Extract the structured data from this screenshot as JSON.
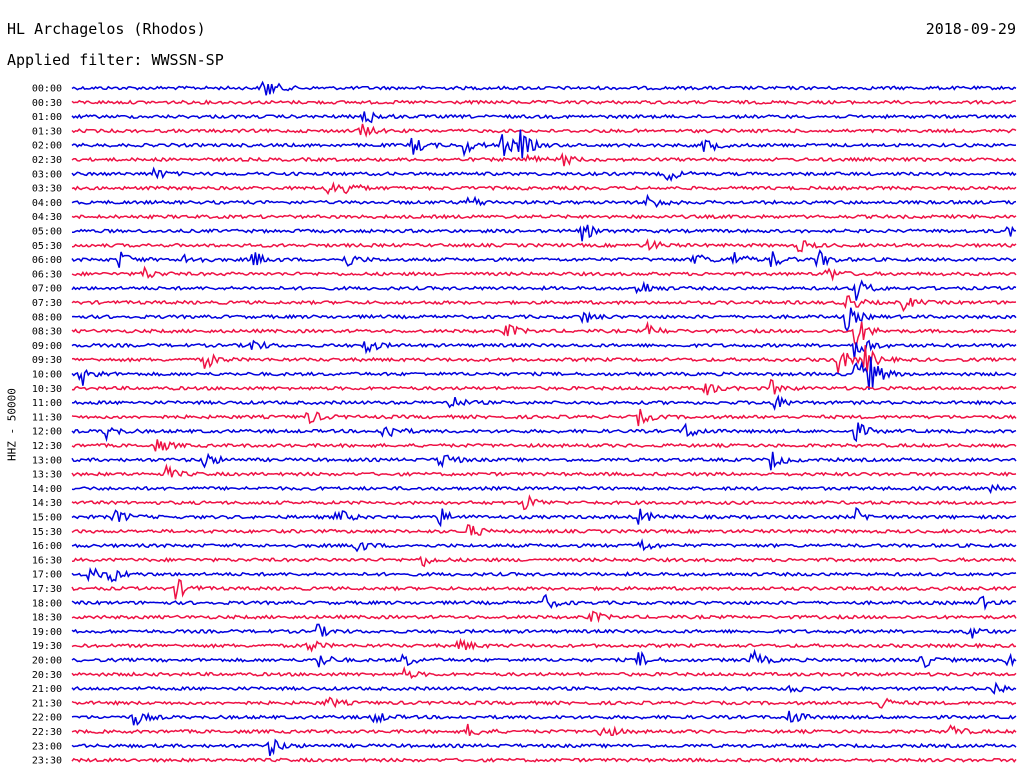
{
  "header": {
    "station": "HL Archagelos (Rhodos)",
    "date": "2018-09-29",
    "filter": "Applied filter: WWSSN-SP"
  },
  "chart_data": {
    "type": "line",
    "subtype": "helicorder",
    "ylabel": "HHZ - 50000",
    "row_times": [
      "00:00",
      "00:30",
      "01:00",
      "01:30",
      "02:00",
      "02:30",
      "03:00",
      "03:30",
      "04:00",
      "04:30",
      "05:00",
      "05:30",
      "06:00",
      "06:30",
      "07:00",
      "07:30",
      "08:00",
      "08:30",
      "09:00",
      "09:30",
      "10:00",
      "10:30",
      "11:00",
      "11:30",
      "12:00",
      "12:30",
      "13:00",
      "13:30",
      "14:00",
      "14:30",
      "15:00",
      "15:30",
      "16:00",
      "16:30",
      "17:00",
      "17:30",
      "18:00",
      "18:30",
      "19:00",
      "19:30",
      "20:00",
      "20:30",
      "21:00",
      "21:30",
      "22:00",
      "22:30",
      "23:00",
      "23:30"
    ],
    "trace_minutes": 30,
    "colors": [
      "#0000dd",
      "#ee1144"
    ],
    "events": [
      {
        "row": 0,
        "t": 0.203,
        "amp": 14
      },
      {
        "row": 2,
        "t": 0.31,
        "amp": 10
      },
      {
        "row": 3,
        "t": 0.305,
        "amp": 8
      },
      {
        "row": 4,
        "t": 0.36,
        "amp": 10
      },
      {
        "row": 4,
        "t": 0.415,
        "amp": 9
      },
      {
        "row": 4,
        "t": 0.455,
        "amp": 13
      },
      {
        "row": 4,
        "t": 0.475,
        "amp": 14
      },
      {
        "row": 4,
        "t": 0.67,
        "amp": 9
      },
      {
        "row": 5,
        "t": 0.48,
        "amp": 6
      },
      {
        "row": 5,
        "t": 0.52,
        "amp": 6
      },
      {
        "row": 6,
        "t": 0.085,
        "amp": 7
      },
      {
        "row": 6,
        "t": 0.63,
        "amp": 8
      },
      {
        "row": 7,
        "t": 0.27,
        "amp": 8
      },
      {
        "row": 7,
        "t": 0.29,
        "amp": 7
      },
      {
        "row": 8,
        "t": 0.42,
        "amp": 8
      },
      {
        "row": 8,
        "t": 0.61,
        "amp": 10
      },
      {
        "row": 10,
        "t": 0.54,
        "amp": 10
      },
      {
        "row": 10,
        "t": 0.99,
        "amp": 7
      },
      {
        "row": 11,
        "t": 0.61,
        "amp": 6
      },
      {
        "row": 11,
        "t": 0.77,
        "amp": 7
      },
      {
        "row": 12,
        "t": 0.05,
        "amp": 9
      },
      {
        "row": 12,
        "t": 0.12,
        "amp": 8
      },
      {
        "row": 12,
        "t": 0.19,
        "amp": 10
      },
      {
        "row": 12,
        "t": 0.29,
        "amp": 8
      },
      {
        "row": 12,
        "t": 0.66,
        "amp": 8
      },
      {
        "row": 12,
        "t": 0.7,
        "amp": 9
      },
      {
        "row": 12,
        "t": 0.74,
        "amp": 9
      },
      {
        "row": 12,
        "t": 0.79,
        "amp": 10
      },
      {
        "row": 13,
        "t": 0.075,
        "amp": 7
      },
      {
        "row": 13,
        "t": 0.8,
        "amp": 8
      },
      {
        "row": 14,
        "t": 0.6,
        "amp": 10
      },
      {
        "row": 14,
        "t": 0.83,
        "amp": 12
      },
      {
        "row": 15,
        "t": 0.82,
        "amp": 11
      },
      {
        "row": 15,
        "t": 0.88,
        "amp": 8
      },
      {
        "row": 16,
        "t": 0.54,
        "amp": 8
      },
      {
        "row": 16,
        "t": 0.82,
        "amp": 14
      },
      {
        "row": 17,
        "t": 0.46,
        "amp": 8
      },
      {
        "row": 17,
        "t": 0.61,
        "amp": 7
      },
      {
        "row": 17,
        "t": 0.83,
        "amp": 18
      },
      {
        "row": 18,
        "t": 0.19,
        "amp": 7
      },
      {
        "row": 18,
        "t": 0.31,
        "amp": 9
      },
      {
        "row": 18,
        "t": 0.83,
        "amp": 20
      },
      {
        "row": 19,
        "t": 0.14,
        "amp": 10
      },
      {
        "row": 19,
        "t": 0.81,
        "amp": 16
      },
      {
        "row": 19,
        "t": 0.84,
        "amp": 14
      },
      {
        "row": 20,
        "t": 0.01,
        "amp": 12
      },
      {
        "row": 20,
        "t": 0.83,
        "amp": 18
      },
      {
        "row": 20,
        "t": 0.845,
        "amp": 16
      },
      {
        "row": 21,
        "t": 0.67,
        "amp": 8
      },
      {
        "row": 21,
        "t": 0.74,
        "amp": 8
      },
      {
        "row": 22,
        "t": 0.4,
        "amp": 8
      },
      {
        "row": 22,
        "t": 0.74,
        "amp": 11
      },
      {
        "row": 23,
        "t": 0.25,
        "amp": 8
      },
      {
        "row": 23,
        "t": 0.6,
        "amp": 8
      },
      {
        "row": 24,
        "t": 0.035,
        "amp": 8
      },
      {
        "row": 24,
        "t": 0.33,
        "amp": 12
      },
      {
        "row": 24,
        "t": 0.65,
        "amp": 9
      },
      {
        "row": 24,
        "t": 0.83,
        "amp": 10
      },
      {
        "row": 25,
        "t": 0.09,
        "amp": 8
      },
      {
        "row": 26,
        "t": 0.14,
        "amp": 9
      },
      {
        "row": 26,
        "t": 0.39,
        "amp": 11
      },
      {
        "row": 26,
        "t": 0.74,
        "amp": 10
      },
      {
        "row": 27,
        "t": 0.1,
        "amp": 7
      },
      {
        "row": 28,
        "t": 0.97,
        "amp": 9
      },
      {
        "row": 29,
        "t": 0.48,
        "amp": 9
      },
      {
        "row": 30,
        "t": 0.045,
        "amp": 9
      },
      {
        "row": 30,
        "t": 0.28,
        "amp": 10
      },
      {
        "row": 30,
        "t": 0.39,
        "amp": 9
      },
      {
        "row": 30,
        "t": 0.6,
        "amp": 9
      },
      {
        "row": 30,
        "t": 0.83,
        "amp": 8
      },
      {
        "row": 31,
        "t": 0.42,
        "amp": 8
      },
      {
        "row": 32,
        "t": 0.3,
        "amp": 8
      },
      {
        "row": 32,
        "t": 0.6,
        "amp": 8
      },
      {
        "row": 33,
        "t": 0.37,
        "amp": 7
      },
      {
        "row": 34,
        "t": 0.015,
        "amp": 10
      },
      {
        "row": 34,
        "t": 0.04,
        "amp": 9
      },
      {
        "row": 35,
        "t": 0.11,
        "amp": 11
      },
      {
        "row": 36,
        "t": 0.5,
        "amp": 8
      },
      {
        "row": 36,
        "t": 0.96,
        "amp": 8
      },
      {
        "row": 37,
        "t": 0.55,
        "amp": 6
      },
      {
        "row": 38,
        "t": 0.26,
        "amp": 7
      },
      {
        "row": 38,
        "t": 0.95,
        "amp": 8
      },
      {
        "row": 39,
        "t": 0.25,
        "amp": 7
      },
      {
        "row": 39,
        "t": 0.41,
        "amp": 8
      },
      {
        "row": 40,
        "t": 0.26,
        "amp": 10
      },
      {
        "row": 40,
        "t": 0.35,
        "amp": 8
      },
      {
        "row": 40,
        "t": 0.6,
        "amp": 8
      },
      {
        "row": 40,
        "t": 0.72,
        "amp": 10
      },
      {
        "row": 40,
        "t": 0.9,
        "amp": 9
      },
      {
        "row": 40,
        "t": 0.99,
        "amp": 8
      },
      {
        "row": 41,
        "t": 0.35,
        "amp": 6
      },
      {
        "row": 42,
        "t": 0.76,
        "amp": 6
      },
      {
        "row": 42,
        "t": 0.975,
        "amp": 8
      },
      {
        "row": 43,
        "t": 0.27,
        "amp": 6
      },
      {
        "row": 43,
        "t": 0.855,
        "amp": 7
      },
      {
        "row": 44,
        "t": 0.065,
        "amp": 9
      },
      {
        "row": 44,
        "t": 0.32,
        "amp": 7
      },
      {
        "row": 44,
        "t": 0.76,
        "amp": 9
      },
      {
        "row": 45,
        "t": 0.42,
        "amp": 8
      },
      {
        "row": 45,
        "t": 0.56,
        "amp": 10
      },
      {
        "row": 45,
        "t": 0.93,
        "amp": 7
      },
      {
        "row": 46,
        "t": 0.21,
        "amp": 10
      }
    ],
    "grid": false,
    "legend": "none"
  }
}
